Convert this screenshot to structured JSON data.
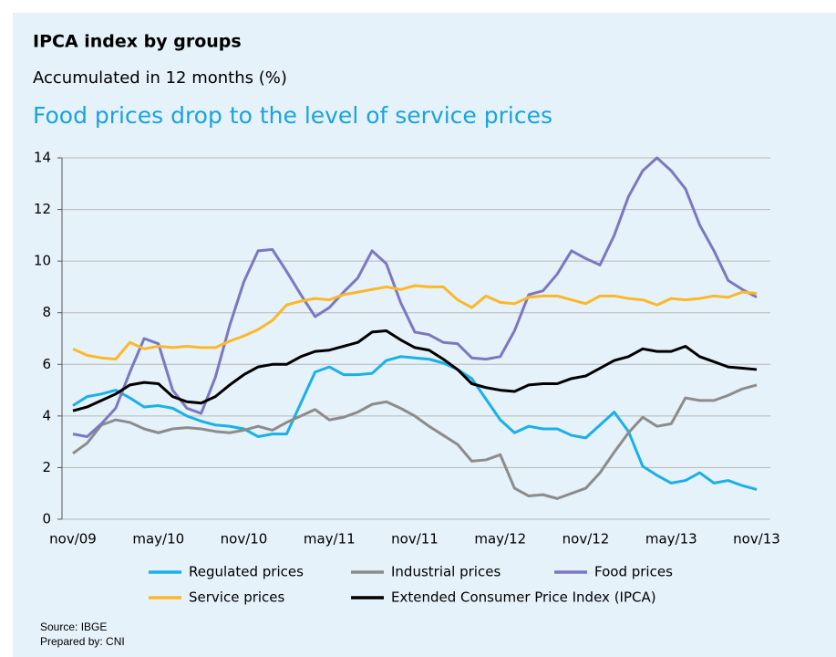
{
  "chart_data": {
    "type": "line",
    "title": "IPCA index by groups",
    "subtitle": "Accumulated in 12 months (%)",
    "headline": "Food prices drop to the level of service prices",
    "source": "Source: IBGE",
    "note": "Prepared by: CNI",
    "categories": [
      "nov/09",
      null,
      null,
      null,
      null,
      null,
      "may/10",
      null,
      null,
      null,
      null,
      null,
      "nov/10",
      null,
      null,
      null,
      null,
      null,
      "may/11",
      null,
      null,
      null,
      null,
      null,
      "nov/11",
      null,
      null,
      null,
      null,
      null,
      "may/12",
      null,
      null,
      null,
      null,
      null,
      "nov/12",
      null,
      null,
      null,
      null,
      null,
      "may/13",
      null,
      null,
      null,
      null,
      null,
      "nov/13"
    ],
    "ylim": [
      0,
      14
    ],
    "yticks": [
      0,
      2,
      4,
      6,
      8,
      10,
      12,
      14
    ],
    "grid": true,
    "series": [
      {
        "name": "Regulated prices",
        "color": "#1ab0e8",
        "values": [
          4.4,
          4.75,
          4.85,
          5.0,
          4.7,
          4.35,
          4.4,
          4.3,
          4.0,
          3.8,
          3.65,
          3.6,
          3.5,
          3.2,
          3.3,
          3.3,
          4.5,
          5.7,
          5.9,
          5.6,
          5.6,
          5.65,
          6.15,
          6.3,
          6.25,
          6.2,
          6.05,
          5.8,
          5.45,
          4.65,
          3.85,
          3.35,
          3.6,
          3.5,
          3.5,
          3.25,
          3.15,
          3.65,
          4.15,
          3.4,
          2.05,
          1.7,
          1.4,
          1.5,
          1.8,
          1.4,
          1.5,
          1.3,
          1.15
        ]
      },
      {
        "name": "Industrial prices",
        "color": "#8c8c8c",
        "values": [
          2.55,
          2.95,
          3.65,
          3.85,
          3.75,
          3.5,
          3.35,
          3.5,
          3.55,
          3.5,
          3.4,
          3.35,
          3.45,
          3.6,
          3.45,
          3.75,
          4.0,
          4.25,
          3.85,
          3.95,
          4.15,
          4.45,
          4.55,
          4.3,
          4.0,
          3.6,
          3.25,
          2.9,
          2.25,
          2.3,
          2.5,
          1.2,
          0.9,
          0.95,
          0.8,
          1.0,
          1.2,
          1.8,
          2.6,
          3.35,
          3.95,
          3.6,
          3.7,
          4.7,
          4.6,
          4.6,
          4.8,
          5.05,
          5.2
        ]
      },
      {
        "name": "Food prices",
        "color": "#7b78c0",
        "values": [
          3.3,
          3.2,
          3.7,
          4.3,
          5.7,
          7.0,
          6.8,
          5.0,
          4.3,
          4.1,
          5.5,
          7.5,
          9.2,
          10.4,
          10.45,
          9.6,
          8.7,
          7.85,
          8.2,
          8.8,
          9.35,
          10.4,
          9.9,
          8.4,
          7.25,
          7.15,
          6.85,
          6.8,
          6.25,
          6.2,
          6.3,
          7.3,
          8.7,
          8.85,
          9.5,
          10.4,
          10.1,
          9.85,
          11.0,
          12.5,
          13.5,
          14.0,
          13.5,
          12.8,
          11.4,
          10.4,
          9.25,
          8.9,
          8.6
        ]
      },
      {
        "name": "Service prices",
        "color": "#fbb829",
        "values": [
          6.6,
          6.35,
          6.25,
          6.2,
          6.85,
          6.6,
          6.7,
          6.65,
          6.7,
          6.65,
          6.65,
          6.9,
          7.1,
          7.35,
          7.7,
          8.3,
          8.45,
          8.55,
          8.5,
          8.7,
          8.8,
          8.9,
          9.0,
          8.9,
          9.05,
          9.0,
          9.0,
          8.5,
          8.2,
          8.65,
          8.4,
          8.35,
          8.6,
          8.65,
          8.65,
          8.5,
          8.35,
          8.65,
          8.65,
          8.55,
          8.5,
          8.3,
          8.55,
          8.5,
          8.55,
          8.65,
          8.6,
          8.8,
          8.75
        ]
      },
      {
        "name": "Extended Consumer Price Index (IPCA)",
        "color": "#000000",
        "values": [
          4.2,
          4.35,
          4.6,
          4.85,
          5.2,
          5.3,
          5.25,
          4.75,
          4.55,
          4.5,
          4.75,
          5.2,
          5.6,
          5.9,
          6.0,
          6.0,
          6.3,
          6.5,
          6.55,
          6.7,
          6.85,
          7.25,
          7.3,
          6.95,
          6.65,
          6.55,
          6.2,
          5.8,
          5.25,
          5.1,
          5.0,
          4.95,
          5.2,
          5.25,
          5.25,
          5.45,
          5.55,
          5.85,
          6.15,
          6.3,
          6.6,
          6.5,
          6.5,
          6.7,
          6.3,
          6.1,
          5.9,
          5.85,
          5.8
        ]
      }
    ]
  }
}
